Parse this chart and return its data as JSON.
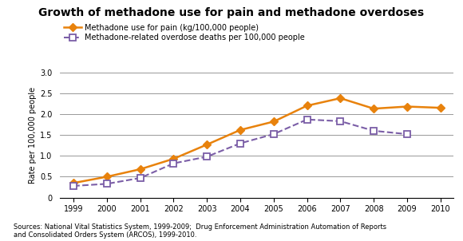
{
  "title": "Growth of methadone use for pain and methadone overdoses",
  "years": [
    1999,
    2000,
    2001,
    2002,
    2003,
    2004,
    2005,
    2006,
    2007,
    2008,
    2009,
    2010
  ],
  "methadone_pain": [
    0.35,
    0.5,
    0.68,
    0.93,
    1.27,
    1.62,
    1.82,
    2.2,
    2.38,
    2.13,
    2.18,
    2.15
  ],
  "methadone_overdose": [
    0.28,
    0.33,
    0.47,
    0.82,
    0.98,
    1.3,
    1.52,
    1.87,
    1.83,
    1.6,
    1.52,
    null
  ],
  "ylabel": "Rate per 100,000 people",
  "ylim": [
    0,
    3.0
  ],
  "yticks": [
    0,
    0.5,
    1.0,
    1.5,
    2.0,
    2.5,
    3.0
  ],
  "xlim": [
    1998.6,
    2010.4
  ],
  "pain_color": "#E8820C",
  "overdose_color": "#7B5EA7",
  "legend_pain": "Methadone use for pain (kg/100,000 people)",
  "legend_overdose": "Methadone-related overdose deaths per 100,000 people",
  "source_text": "Sources: National Vital Statistics System, 1999-2009;  Drug Enforcement Administration Automation of Reports\nand Consolidated Orders System (ARCOS), 1999-2010.",
  "bg_color": "#FFFFFF",
  "grid_color": "#888888"
}
